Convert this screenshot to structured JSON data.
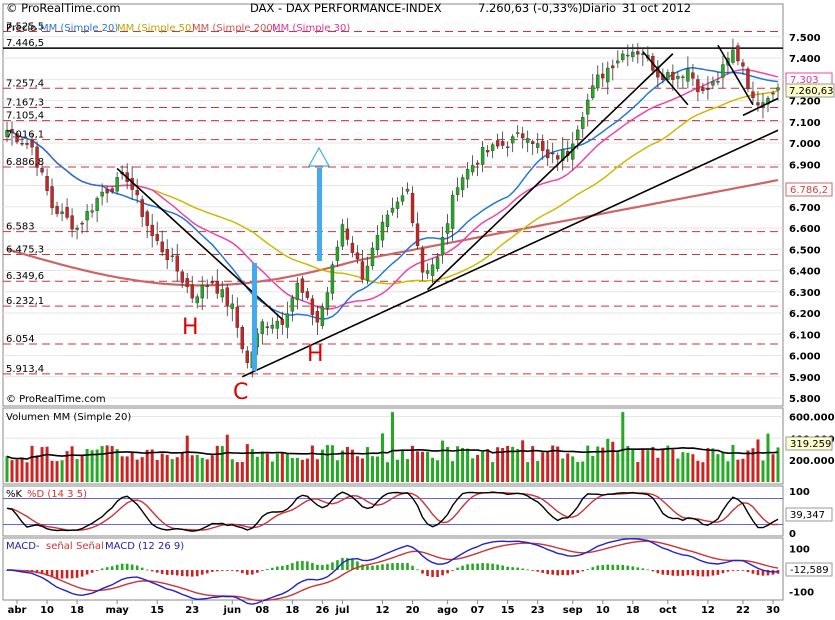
{
  "header": {
    "watermark_top": "© ProRealTime.com",
    "title": "DAX - DAX PERFORMANCE-INDEX",
    "change": "7.260,63 (-0,33%)",
    "period": "Diario",
    "date": "31 oct 2012",
    "legend": {
      "precio": "Precio",
      "mm20": "MM (Simple 20)",
      "mm50": "MM (Simple 50)",
      "mm200": "MM (Simple 200)",
      "mm30": "MM (Simple 30)"
    },
    "watermark_bottom": "© ProRealTime.com"
  },
  "colors": {
    "up": "#22aa22",
    "down": "#cc2222",
    "mm20": "#2277dd",
    "mm50": "#ccbb00",
    "mm200": "#cc6666",
    "mm30": "#ee44aa",
    "blue_arrow": "#44aaee",
    "pattern_text": "#dd0000"
  },
  "chart_data": [
    {
      "type": "line",
      "panel": "price",
      "y_ticks": [
        5.8,
        5.9,
        6.0,
        6.1,
        6.2,
        6.3,
        6.4,
        6.5,
        6.6,
        6.7,
        6.8,
        6.9,
        7.0,
        7.1,
        7.2,
        7.3,
        7.4,
        7.5
      ],
      "y_tick_labels": [
        "5.800",
        "5.900",
        "6.000",
        "6.100",
        "6.200",
        "6.300",
        "6.400",
        "6.500",
        "6.600",
        "6.700",
        "6.800",
        "6.900",
        "7.000",
        "7.100",
        "7.200",
        "7.300",
        "7.400",
        "7.500"
      ],
      "ylim": [
        5.8,
        7.56
      ],
      "level_lines": [
        7.525,
        7.4465,
        7.2574,
        7.1673,
        7.1054,
        7.0161,
        6.8868,
        6.583,
        6.4753,
        6.3496,
        6.2321,
        6.054,
        5.9134
      ],
      "level_labels": [
        "7.525,5",
        "7.446,5",
        "7.257,4",
        "7.167,3",
        "7.105,4",
        "7.016,1",
        "6.886,8",
        "6.583",
        "6.475,3",
        "6.349,6",
        "6.232,1",
        "6.054",
        "5.913,4"
      ],
      "last_price_label": "7.260,63",
      "mm30_label": "7.303",
      "mm200_label": "6.786,2",
      "x_labels": [
        "abr",
        "10",
        "18",
        "may",
        "15",
        "23",
        "jun",
        "08",
        "18",
        "26",
        "jul",
        "12",
        "20",
        "ago",
        "07",
        "15",
        "23",
        "sep",
        "10",
        "18",
        "oct",
        "12",
        "22",
        "30"
      ],
      "annotations": [
        "H",
        "H",
        "C"
      ],
      "close_anchors": [
        {
          "d": 0,
          "v": 7.06
        },
        {
          "d": 5,
          "v": 6.98
        },
        {
          "d": 9,
          "v": 6.7
        },
        {
          "d": 14,
          "v": 6.6
        },
        {
          "d": 19,
          "v": 6.77
        },
        {
          "d": 24,
          "v": 6.84
        },
        {
          "d": 29,
          "v": 6.56
        },
        {
          "d": 33,
          "v": 6.44
        },
        {
          "d": 37,
          "v": 6.28
        },
        {
          "d": 41,
          "v": 6.35
        },
        {
          "d": 45,
          "v": 6.22
        },
        {
          "d": 48,
          "v": 5.96
        },
        {
          "d": 51,
          "v": 6.15
        },
        {
          "d": 55,
          "v": 6.17
        },
        {
          "d": 58,
          "v": 6.33
        },
        {
          "d": 62,
          "v": 6.16
        },
        {
          "d": 64,
          "v": 6.3
        },
        {
          "d": 67,
          "v": 6.62
        },
        {
          "d": 71,
          "v": 6.38
        },
        {
          "d": 75,
          "v": 6.6
        },
        {
          "d": 80,
          "v": 6.78
        },
        {
          "d": 83,
          "v": 6.4
        },
        {
          "d": 86,
          "v": 6.45
        },
        {
          "d": 90,
          "v": 6.82
        },
        {
          "d": 95,
          "v": 6.95
        },
        {
          "d": 100,
          "v": 7.0
        },
        {
          "d": 104,
          "v": 7.05
        },
        {
          "d": 108,
          "v": 6.92
        },
        {
          "d": 112,
          "v": 6.96
        },
        {
          "d": 115,
          "v": 7.15
        },
        {
          "d": 118,
          "v": 7.3
        },
        {
          "d": 121,
          "v": 7.38
        },
        {
          "d": 124,
          "v": 7.44
        },
        {
          "d": 127,
          "v": 7.43
        },
        {
          "d": 130,
          "v": 7.33
        },
        {
          "d": 134,
          "v": 7.32
        },
        {
          "d": 136,
          "v": 7.35
        },
        {
          "d": 139,
          "v": 7.23
        },
        {
          "d": 142,
          "v": 7.3
        },
        {
          "d": 145,
          "v": 7.43
        },
        {
          "d": 147,
          "v": 7.37
        },
        {
          "d": 149,
          "v": 7.19
        },
        {
          "d": 152,
          "v": 7.23
        },
        {
          "d": 154,
          "v": 7.26
        }
      ]
    },
    {
      "type": "bar",
      "panel": "volume",
      "title": "Volumen",
      "ma_label": "MM (Simple 20)",
      "y_tick_labels": [
        "600.000",
        "400.000",
        "200.000"
      ],
      "ylim": [
        0,
        650000
      ],
      "last_value_label": "319.259"
    },
    {
      "type": "line",
      "panel": "stochastic",
      "title_k": "%K",
      "title_d": "%D (14 3 5)",
      "y_tick_labels": [
        "100",
        "0"
      ],
      "ylim": [
        0,
        100
      ],
      "last_value_label": "39,347"
    },
    {
      "type": "line",
      "panel": "macd",
      "title_macd": "MACD-",
      "title_signal_prefix": "señal",
      "title_signal": "Señal",
      "title_params": "MACD (12 26 9)",
      "y_tick_labels": [
        "100",
        "0",
        "-100"
      ],
      "ylim": [
        -130,
        130
      ],
      "last_value_label": "-12,589"
    }
  ]
}
